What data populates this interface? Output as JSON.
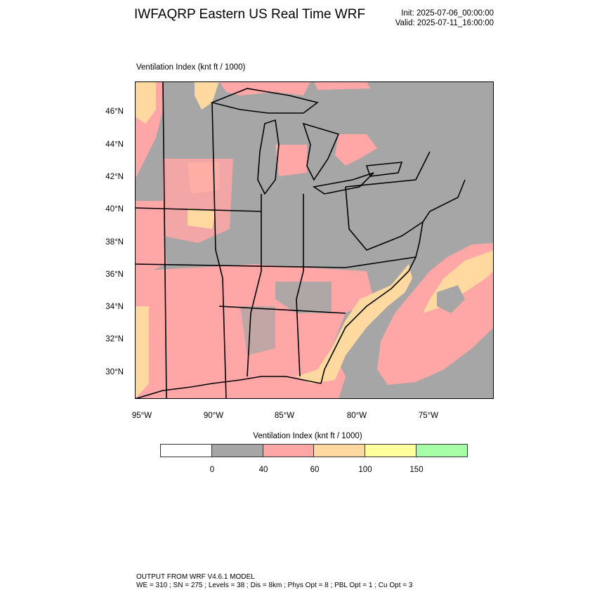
{
  "header": {
    "title": "IWFAQRP Eastern US Real Time WRF",
    "init": "Init: 2025-07-06_00:00:00",
    "valid": "Valid: 2025-07-11_16:00:00"
  },
  "map": {
    "field_label": "Ventilation Index   (knt ft / 1000)",
    "lat_labels": [
      "46°N",
      "44°N",
      "42°N",
      "40°N",
      "38°N",
      "36°N",
      "34°N",
      "32°N",
      "30°N"
    ],
    "lon_labels": [
      "95°W",
      "90°W",
      "85°W",
      "80°W",
      "75°W"
    ],
    "land_fill_dominant": "#a6a6a6",
    "ocean_fill": "#a6a6a6"
  },
  "colorbar": {
    "title": "Ventilation Index  (knt ft / 1000)",
    "ticks": [
      "0",
      "40",
      "60",
      "100",
      "150"
    ],
    "colors": [
      "#ffffff",
      "#a6a6a6",
      "#ffa6a6",
      "#ffd9a0",
      "#ffff9e",
      "#a6ffa6"
    ]
  },
  "footer": {
    "line1": "OUTPUT FROM WRF V4.6.1 MODEL",
    "line2": "WE = 310 ; SN = 275 ; Levels = 38 ; Dis = 8km ; Phys Opt = 8 ; PBL Opt = 1 ; Cu Opt = 3"
  }
}
